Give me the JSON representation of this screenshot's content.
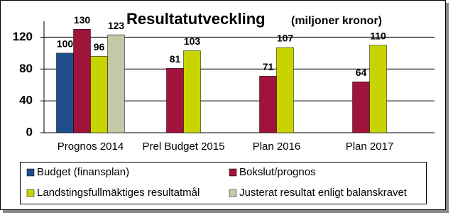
{
  "chart_data": {
    "type": "bar",
    "title": "Resultatutveckling",
    "subtitle": "(miljoner kronor)",
    "categories": [
      "Prognos 2014",
      "Prel Budget 2015",
      "Plan 2016",
      "Plan 2017"
    ],
    "series": [
      {
        "name": "Budget (finansplan)",
        "color": "#1f4e8c",
        "values": [
          100,
          null,
          null,
          null
        ]
      },
      {
        "name": "Bokslut/prognos",
        "color": "#a0143c",
        "values": [
          130,
          81,
          71,
          64
        ]
      },
      {
        "name": "Landstingsfullmäktiges resultatmål",
        "color": "#c8d400",
        "values": [
          96,
          103,
          107,
          110
        ]
      },
      {
        "name": "Justerat resultat enligt balanskravet",
        "color": "#c4c8a8",
        "values": [
          123,
          null,
          null,
          null
        ]
      }
    ],
    "ylim": [
      0,
      140
    ],
    "yticks": [
      0,
      40,
      80,
      120
    ],
    "grid": true
  }
}
